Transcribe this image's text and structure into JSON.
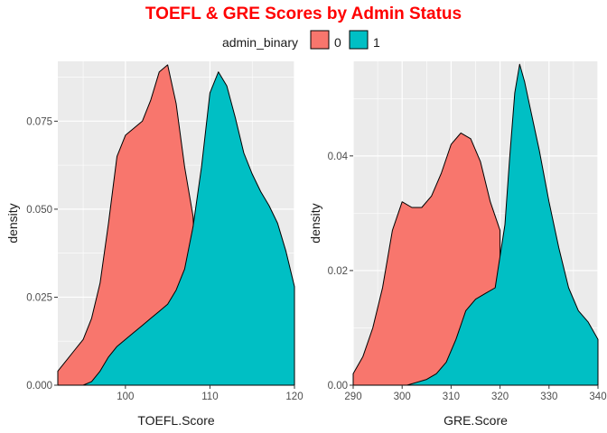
{
  "title": "TOEFL & GRE Scores by Admin Status",
  "legend": {
    "title": "admin_binary",
    "entries": [
      {
        "label": "0",
        "color": "#F8766D"
      },
      {
        "label": "1",
        "color": "#00BFC4"
      }
    ]
  },
  "colors": {
    "panel_bg": "#EBEBEB",
    "grid": "#FFFFFF",
    "title": "#FF0000",
    "tick_text": "#4D4D4D",
    "outline": "#000000"
  },
  "chart_data": [
    {
      "type": "area",
      "subtype": "density",
      "xlabel": "TOEFL.Score",
      "ylabel": "density",
      "xlim": [
        92,
        120
      ],
      "ylim": [
        0,
        0.092
      ],
      "x_ticks": [
        100,
        110,
        120
      ],
      "y_ticks": [
        0.0,
        0.025,
        0.05,
        0.075
      ],
      "x_tick_labels": [
        "100",
        "110",
        "120"
      ],
      "y_tick_labels": [
        "0.000",
        "0.025",
        "0.050",
        "0.075"
      ],
      "grid": true,
      "legend_position": "top",
      "series": [
        {
          "name": "0",
          "color": "#F8766D",
          "x": [
            92,
            93,
            94,
            95,
            96,
            97,
            98,
            99,
            100,
            101,
            102,
            103,
            104,
            105,
            106,
            107,
            108,
            109
          ],
          "y": [
            0.004,
            0.007,
            0.01,
            0.013,
            0.019,
            0.029,
            0.046,
            0.065,
            0.071,
            0.073,
            0.075,
            0.081,
            0.089,
            0.091,
            0.08,
            0.062,
            0.048,
            0.0
          ]
        },
        {
          "name": "1",
          "color": "#00BFC4",
          "x": [
            94,
            95,
            96,
            97,
            98,
            99,
            100,
            101,
            102,
            103,
            104,
            105,
            106,
            107,
            108,
            109,
            110,
            111,
            112,
            113,
            114,
            115,
            116,
            117,
            118,
            119,
            120
          ],
          "y": [
            0.0,
            0.0,
            0.001,
            0.004,
            0.008,
            0.011,
            0.013,
            0.015,
            0.017,
            0.019,
            0.021,
            0.023,
            0.027,
            0.033,
            0.045,
            0.062,
            0.083,
            0.089,
            0.085,
            0.076,
            0.066,
            0.06,
            0.055,
            0.051,
            0.046,
            0.038,
            0.028
          ]
        }
      ]
    },
    {
      "type": "area",
      "subtype": "density",
      "xlabel": "GRE.Score",
      "ylabel": "density",
      "xlim": [
        290,
        340
      ],
      "ylim": [
        0,
        0.0565
      ],
      "x_ticks": [
        290,
        300,
        310,
        320,
        330,
        340
      ],
      "y_ticks": [
        0.0,
        0.02,
        0.04
      ],
      "x_tick_labels": [
        "290",
        "300",
        "310",
        "320",
        "330",
        "340"
      ],
      "y_tick_labels": [
        "0.00",
        "0.02",
        "0.04"
      ],
      "grid": true,
      "legend_position": "top",
      "series": [
        {
          "name": "0",
          "color": "#F8766D",
          "x": [
            290,
            292,
            294,
            296,
            298,
            300,
            302,
            304,
            306,
            308,
            310,
            312,
            314,
            316,
            318,
            320
          ],
          "y": [
            0.002,
            0.005,
            0.01,
            0.017,
            0.027,
            0.032,
            0.031,
            0.031,
            0.033,
            0.037,
            0.042,
            0.044,
            0.043,
            0.039,
            0.032,
            0.027
          ]
        },
        {
          "name": "1",
          "color": "#00BFC4",
          "x": [
            295,
            297,
            299,
            301,
            303,
            305,
            307,
            309,
            311,
            313,
            315,
            317,
            319,
            321,
            322,
            323,
            324,
            325,
            326,
            328,
            330,
            332,
            334,
            336,
            338,
            340
          ],
          "y": [
            0.0,
            0.0,
            0.0,
            0.0,
            0.0005,
            0.001,
            0.002,
            0.004,
            0.008,
            0.013,
            0.015,
            0.016,
            0.017,
            0.028,
            0.04,
            0.051,
            0.056,
            0.053,
            0.049,
            0.041,
            0.032,
            0.024,
            0.017,
            0.013,
            0.011,
            0.008
          ]
        }
      ]
    }
  ]
}
